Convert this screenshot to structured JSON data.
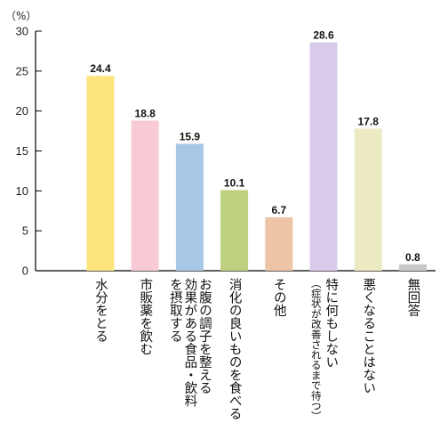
{
  "chart_data": {
    "type": "bar",
    "unit_label": "（%）",
    "y_ticks": [
      "0",
      "5",
      "10",
      "15",
      "20",
      "25",
      "30"
    ],
    "ylim": [
      0,
      30
    ],
    "grid": false,
    "categories": [
      [
        "水分をとる"
      ],
      [
        "市販薬を飲む"
      ],
      [
        "お腹の調子を整える",
        "効果がある食品・飲料",
        "を摂取する"
      ],
      [
        "消化の良いものを食べる"
      ],
      [
        "その他"
      ],
      [
        "特に何もしない",
        "（症状が改善されるまで待つ）"
      ],
      [
        "悪くなることはない"
      ],
      [
        "無回答"
      ]
    ],
    "values": [
      24.4,
      18.8,
      15.9,
      10.1,
      6.7,
      28.6,
      17.8,
      0.8
    ],
    "value_labels": [
      "24.4",
      "18.8",
      "15.9",
      "10.1",
      "6.7",
      "28.6",
      "17.8",
      "0.8"
    ],
    "colors": [
      "#FBE57C",
      "#F8CAD5",
      "#A8C8E8",
      "#BDD07E",
      "#EDC5A6",
      "#D8CBEA",
      "#ECEAC2",
      "#C8C8C8"
    ]
  }
}
